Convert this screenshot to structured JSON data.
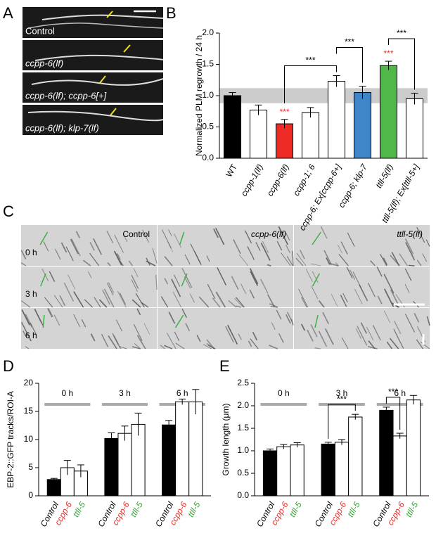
{
  "panel_letters": [
    "A",
    "B",
    "C",
    "D",
    "E"
  ],
  "panel_a": {
    "labels": [
      "Control",
      "ccpp-6(lf)",
      "ccpp-6(lf); ccpp-6[+]",
      "ccpp-6(lf); klp-7(lf)"
    ]
  },
  "panel_c": {
    "columns": [
      "Control",
      "ccpp-6(lf)",
      "ttll-5(lf)"
    ],
    "rows": [
      "0 h",
      "3 h",
      "6 h"
    ]
  },
  "chart_data": [
    {
      "type": "bar",
      "ylabel": "Normalized PLM regrowth / 24 h",
      "categories": [
        "WT",
        "ccpp-1(lf)",
        "ccpp-6(lf)",
        "ccpp-1; 6",
        "ccpp-6; Ex[ccpp-6+]",
        "ccpp-6; klp-7",
        "ttll-5(lf)",
        "ttll-5(lf); Ex[ttll-5+]"
      ],
      "values": [
        1.0,
        0.77,
        0.55,
        0.73,
        1.23,
        1.05,
        1.48,
        0.95
      ],
      "errors": [
        0.05,
        0.08,
        0.07,
        0.08,
        0.09,
        0.1,
        0.07,
        0.09
      ],
      "colors": [
        "#000000",
        "#ffffff",
        "#ee2a24",
        "#ffffff",
        "#ffffff",
        "#3f86c8",
        "#4fb848",
        "#ffffff"
      ],
      "ylim": [
        0,
        2
      ],
      "yticks": [
        {
          "value": 0,
          "label": "0.0"
        },
        0.5,
        {
          "value": 1,
          "label": "1.0"
        },
        1.5,
        {
          "value": 2,
          "label": "2.0"
        }
      ],
      "reference_band": [
        0.88,
        1.12
      ],
      "markers": [
        {
          "index": 2,
          "label": "***",
          "color": "#ee2a24"
        },
        {
          "index": 6,
          "label": "***",
          "color": "#ee2a24"
        }
      ],
      "brackets": [
        {
          "from": 2,
          "to": 4,
          "label": "***"
        },
        {
          "from": 4,
          "to": 5,
          "label": "***"
        },
        {
          "from": 6,
          "to": 7,
          "label": "***"
        }
      ]
    },
    {
      "type": "grouped_bar",
      "ylabel": "EBP-2::GFP tracks/ROI-A",
      "categories": [
        "Control",
        "ccpp-6",
        "ttll-5"
      ],
      "category_colors": [
        "#000000",
        "#ee2a24",
        "#3aa63a"
      ],
      "bar_colors": [
        "#000000",
        "#ffffff",
        "#ffffff"
      ],
      "series": [
        {
          "name": "0 h",
          "values": [
            2.9,
            5.0,
            4.4
          ],
          "errors": [
            0.2,
            1.3,
            1.1
          ]
        },
        {
          "name": "3 h",
          "values": [
            10.2,
            11.1,
            12.7
          ],
          "errors": [
            1.0,
            1.3,
            2.0
          ]
        },
        {
          "name": "6 h",
          "values": [
            12.6,
            16.7,
            16.7
          ],
          "errors": [
            0.8,
            0.5,
            2.2
          ]
        }
      ],
      "ylim": [
        0,
        20
      ],
      "yticks": [
        0,
        5,
        10,
        15,
        20
      ]
    },
    {
      "type": "grouped_bar",
      "ylabel": "Growth length (μm)",
      "categories": [
        "Control",
        "ccpp-6",
        "ttll-5"
      ],
      "category_colors": [
        "#000000",
        "#ee2a24",
        "#3aa63a"
      ],
      "bar_colors": [
        "#000000",
        "#ffffff",
        "#ffffff"
      ],
      "series": [
        {
          "name": "0 h",
          "values": [
            1.0,
            1.09,
            1.13
          ],
          "errors": [
            0.04,
            0.05,
            0.05
          ]
        },
        {
          "name": "3 h",
          "values": [
            1.15,
            1.19,
            1.75
          ],
          "errors": [
            0.04,
            0.06,
            0.06
          ]
        },
        {
          "name": "6 h",
          "values": [
            1.9,
            1.33,
            2.13
          ],
          "errors": [
            0.07,
            0.06,
            0.1
          ]
        }
      ],
      "ylim": [
        0,
        2.5
      ],
      "yticks": [
        {
          "value": 0,
          "label": "0.0"
        },
        0.5,
        {
          "value": 1,
          "label": "1.0"
        },
        1.5,
        {
          "value": 2,
          "label": "2.0"
        },
        2.5
      ],
      "brackets": [
        {
          "group": 1,
          "from": 0,
          "to": 2,
          "label": "***"
        },
        {
          "group": 2,
          "from": 0,
          "to": 1,
          "label": "***"
        }
      ]
    }
  ]
}
